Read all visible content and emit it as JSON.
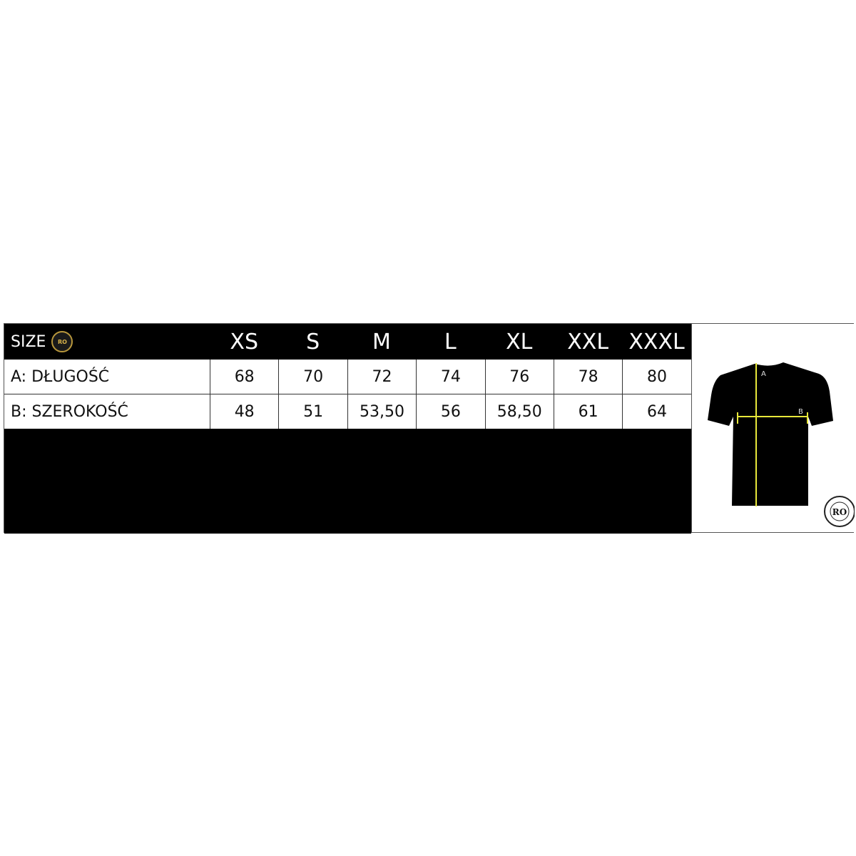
{
  "header": {
    "label": "SIZE",
    "logo_text": "RULEOUT RO",
    "sizes": [
      "XS",
      "S",
      "M",
      "L",
      "XL",
      "XXL",
      "XXXL"
    ]
  },
  "rows": [
    {
      "label": "A:  DŁUGOŚĆ",
      "values": [
        "68",
        "70",
        "72",
        "74",
        "76",
        "78",
        "80"
      ]
    },
    {
      "label": "B: SZEROKOŚĆ",
      "values": [
        "48",
        "51",
        "53,50",
        "56",
        "58,50",
        "61",
        "64"
      ]
    }
  ],
  "diagram": {
    "label_a": "A",
    "label_b": "B",
    "logo_text": "RULEOUT RO",
    "line_color": "#e8e83a"
  }
}
